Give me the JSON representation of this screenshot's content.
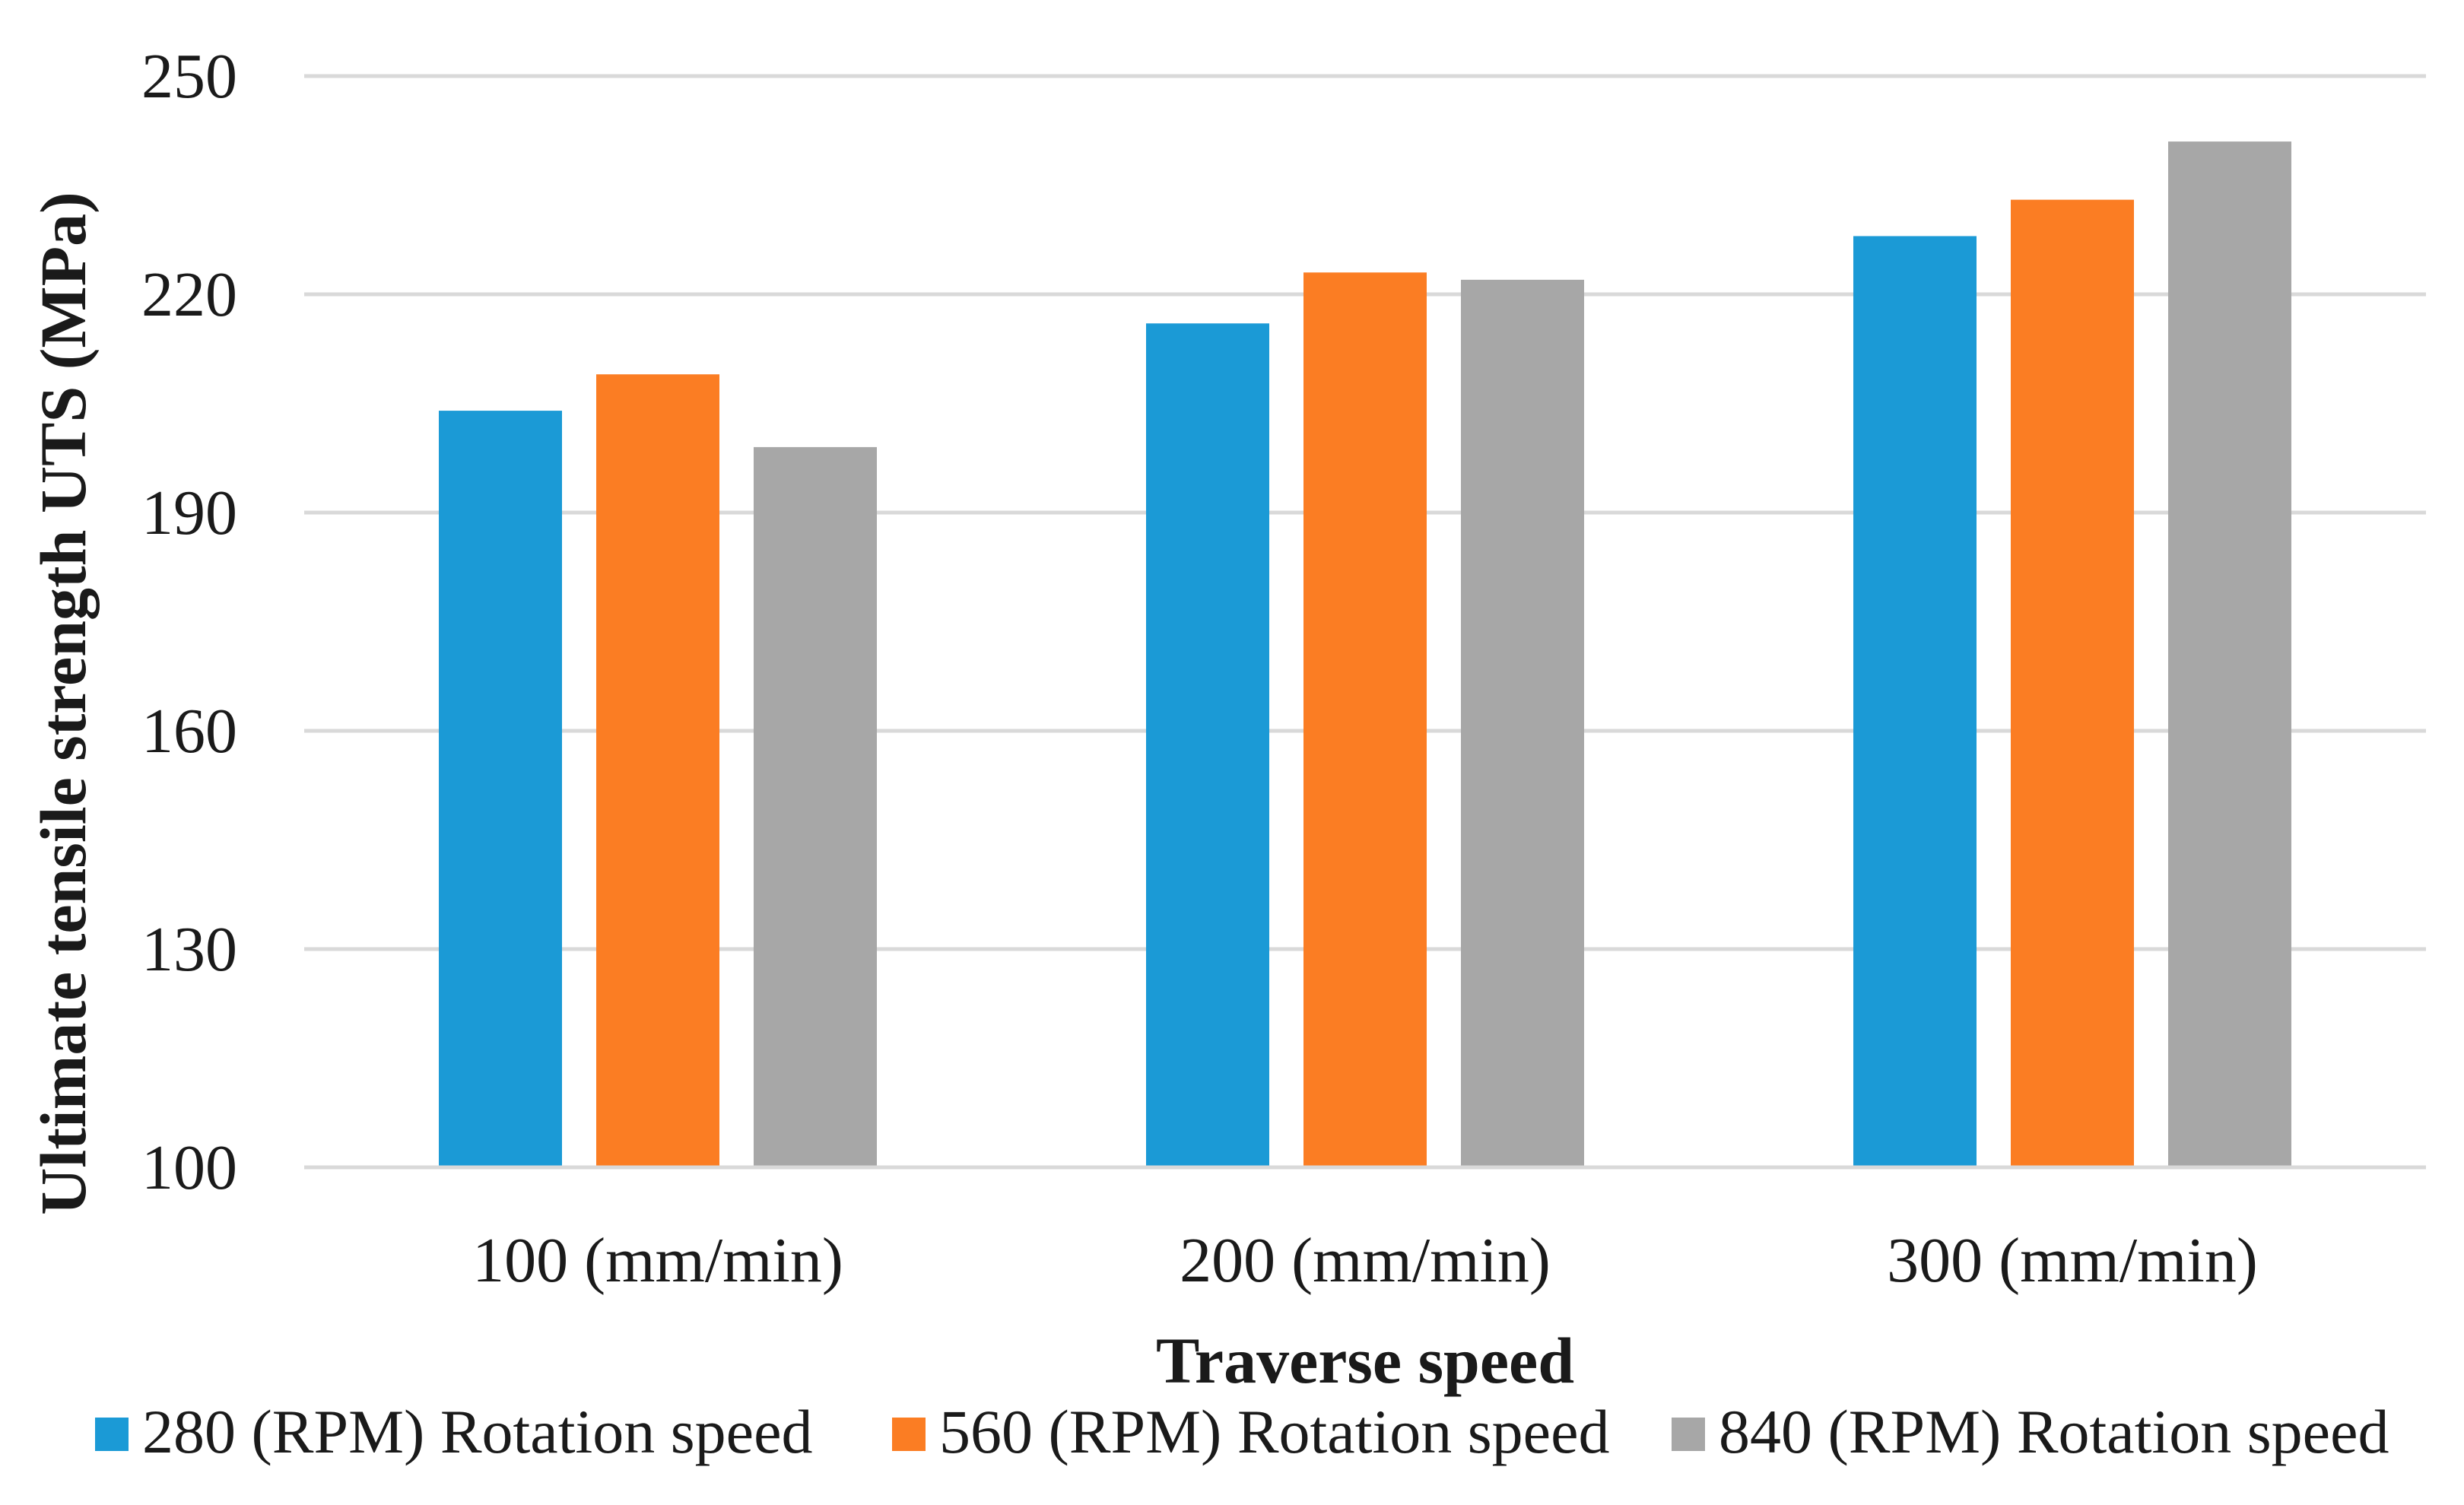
{
  "chart_data": {
    "type": "bar",
    "title": "",
    "xlabel": "Traverse speed",
    "ylabel": "Ultimate tensile strength UTS (MPa)",
    "ylim": [
      100,
      250
    ],
    "yticks": [
      100,
      130,
      160,
      190,
      220,
      250
    ],
    "grid": true,
    "legend_position": "bottom",
    "categories": [
      "100 (mm/min)",
      "200 (mm/min)",
      "300 (mm/min)"
    ],
    "series": [
      {
        "name": "280 (RPM) Rotation speed",
        "color": "#1b9ad6",
        "values": [
          204,
          216,
          228
        ]
      },
      {
        "name": "560 (RPM) Rotation speed",
        "color": "#fb7d23",
        "values": [
          209,
          223,
          233
        ]
      },
      {
        "name": "840 (RPM) Rotation speed",
        "color": "#a7a7a7",
        "values": [
          199,
          222,
          241
        ]
      }
    ]
  }
}
